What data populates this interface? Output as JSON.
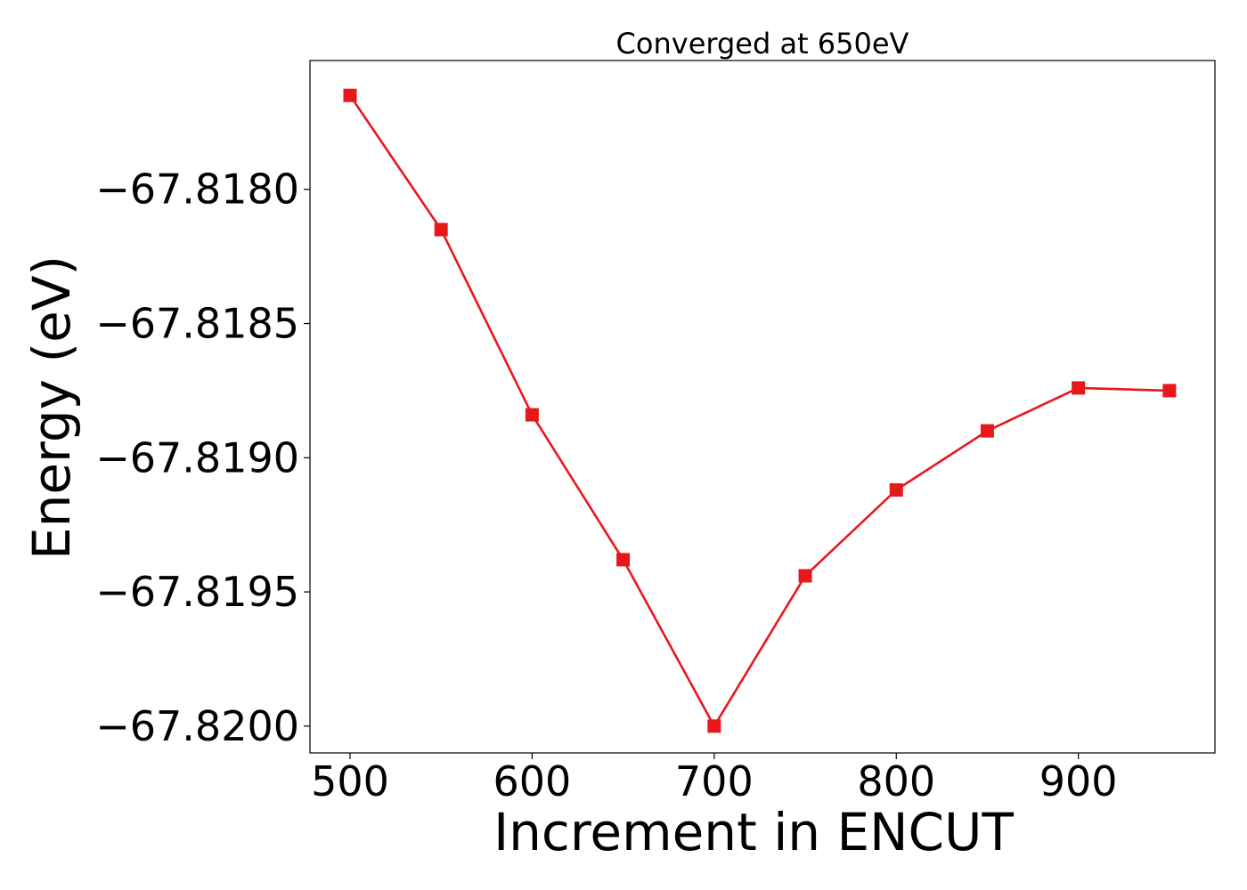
{
  "chart_data": {
    "type": "line",
    "title": "Converged at 650eV",
    "xlabel": "Increment in ENCUT",
    "ylabel": "Energy (eV)",
    "xlim": [
      478,
      975
    ],
    "ylim": [
      -67.8201,
      -67.81752
    ],
    "x_ticks": [
      500,
      600,
      700,
      800,
      900
    ],
    "x_tick_labels": [
      "500",
      "600",
      "700",
      "800",
      "900"
    ],
    "y_ticks": [
      -67.818,
      -67.8185,
      -67.819,
      -67.8195,
      -67.82
    ],
    "y_tick_labels": [
      "−67.8180",
      "−67.8185",
      "−67.8190",
      "−67.8195",
      "−67.8200"
    ],
    "grid": false,
    "series": [
      {
        "color": "#e8171c",
        "marker": "square",
        "x": [
          500,
          550,
          600,
          650,
          700,
          750,
          800,
          850,
          900,
          950
        ],
        "y": [
          -67.81765,
          -67.81815,
          -67.81884,
          -67.81938,
          -67.82,
          -67.81944,
          -67.81912,
          -67.8189,
          -67.81874,
          -67.81875
        ]
      }
    ]
  }
}
